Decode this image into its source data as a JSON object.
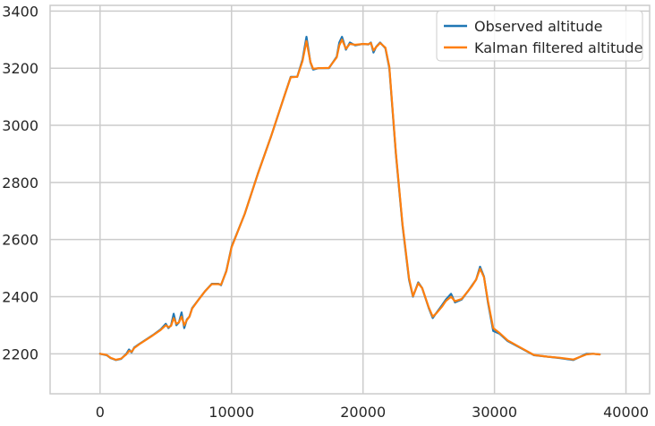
{
  "chart_data": {
    "type": "line",
    "title": "",
    "xlabel": "",
    "ylabel": "",
    "xlim": [
      -3800,
      41800
    ],
    "ylim": [
      2060,
      3420
    ],
    "xticks": [
      0,
      10000,
      20000,
      30000,
      40000
    ],
    "xtick_labels": [
      "0",
      "10000",
      "20000",
      "30000",
      "40000"
    ],
    "yticks": [
      2200,
      2400,
      2600,
      2800,
      3000,
      3200,
      3400
    ],
    "ytick_labels": [
      "2200",
      "2400",
      "2600",
      "2800",
      "3000",
      "3200",
      "3400"
    ],
    "grid": true,
    "legend_position": "upper right",
    "series": [
      {
        "name": "Observed altitude",
        "color": "#1f77b4",
        "x": [
          0,
          500,
          800,
          1200,
          1600,
          2000,
          2200,
          2400,
          2600,
          3000,
          4000,
          4600,
          5000,
          5200,
          5400,
          5600,
          5800,
          6000,
          6200,
          6400,
          6600,
          6800,
          7000,
          7500,
          8000,
          8500,
          9000,
          9200,
          9600,
          10000,
          11000,
          12000,
          13000,
          14000,
          14500,
          15000,
          15400,
          15700,
          16000,
          16200,
          16600,
          17400,
          18000,
          18200,
          18400,
          18700,
          19000,
          19400,
          20000,
          20400,
          20600,
          20800,
          21000,
          21300,
          21700,
          22000,
          22500,
          23000,
          23500,
          23800,
          24200,
          24500,
          25000,
          25300,
          25600,
          26000,
          26300,
          26700,
          27000,
          27500,
          28000,
          28300,
          28600,
          28900,
          29200,
          29500,
          29900,
          30400,
          31000,
          32000,
          33000,
          34000,
          35000,
          36000,
          37000,
          37500,
          38000
        ],
        "y": [
          2200,
          2195,
          2185,
          2178,
          2182,
          2200,
          2215,
          2205,
          2222,
          2235,
          2265,
          2285,
          2305,
          2290,
          2300,
          2340,
          2300,
          2310,
          2345,
          2290,
          2320,
          2330,
          2360,
          2390,
          2420,
          2445,
          2445,
          2440,
          2490,
          2575,
          2690,
          2830,
          2960,
          3100,
          3170,
          3170,
          3230,
          3310,
          3220,
          3195,
          3200,
          3200,
          3240,
          3290,
          3310,
          3265,
          3290,
          3280,
          3285,
          3283,
          3290,
          3255,
          3275,
          3290,
          3270,
          3200,
          2900,
          2650,
          2460,
          2400,
          2450,
          2430,
          2360,
          2325,
          2345,
          2370,
          2390,
          2410,
          2380,
          2390,
          2420,
          2440,
          2460,
          2505,
          2470,
          2380,
          2280,
          2270,
          2245,
          2220,
          2195,
          2190,
          2185,
          2178,
          2200,
          2200,
          2198
        ]
      },
      {
        "name": "Kalman filtered altitude",
        "color": "#ff7f0e",
        "x": [
          0,
          500,
          800,
          1200,
          1600,
          2000,
          2200,
          2400,
          2600,
          3000,
          4000,
          4600,
          5000,
          5200,
          5400,
          5600,
          5800,
          6000,
          6200,
          6400,
          6600,
          6800,
          7000,
          7500,
          8000,
          8500,
          9000,
          9200,
          9600,
          10000,
          11000,
          12000,
          13000,
          14000,
          14500,
          15000,
          15400,
          15700,
          16000,
          16200,
          16600,
          17400,
          18000,
          18200,
          18400,
          18700,
          19000,
          19400,
          20000,
          20400,
          20600,
          20800,
          21000,
          21300,
          21700,
          22000,
          22500,
          23000,
          23500,
          23800,
          24200,
          24500,
          25000,
          25300,
          25600,
          26000,
          26300,
          26700,
          27000,
          27500,
          28000,
          28300,
          28600,
          28900,
          29200,
          29500,
          29900,
          30400,
          31000,
          32000,
          33000,
          34000,
          35000,
          36000,
          37000,
          37500,
          38000
        ],
        "y": [
          2200,
          2196,
          2186,
          2179,
          2183,
          2198,
          2210,
          2207,
          2220,
          2234,
          2264,
          2283,
          2300,
          2293,
          2298,
          2325,
          2305,
          2310,
          2330,
          2300,
          2318,
          2330,
          2358,
          2390,
          2420,
          2444,
          2444,
          2442,
          2488,
          2573,
          2690,
          2829,
          2960,
          3100,
          3168,
          3170,
          3225,
          3295,
          3222,
          3198,
          3200,
          3201,
          3238,
          3280,
          3300,
          3268,
          3285,
          3282,
          3285,
          3284,
          3288,
          3262,
          3274,
          3288,
          3272,
          3205,
          2905,
          2655,
          2465,
          2402,
          2447,
          2430,
          2362,
          2330,
          2343,
          2365,
          2385,
          2400,
          2384,
          2392,
          2420,
          2438,
          2460,
          2498,
          2468,
          2385,
          2290,
          2272,
          2247,
          2221,
          2196,
          2190,
          2186,
          2180,
          2198,
          2200,
          2198
        ]
      }
    ]
  }
}
